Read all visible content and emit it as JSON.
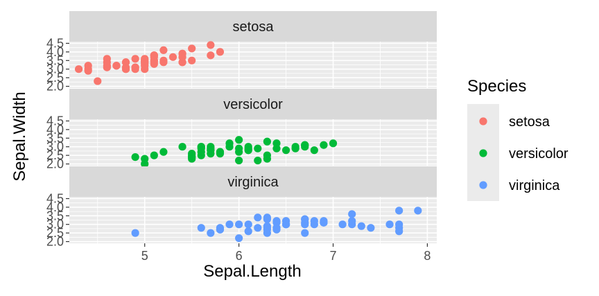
{
  "chart_data": {
    "type": "scatter",
    "xlabel": "Sepal.Length",
    "ylabel": "Sepal.Width",
    "xlim": [
      4.2,
      8.1
    ],
    "ylim": [
      1.9,
      4.6
    ],
    "x_ticks": [
      5,
      6,
      7,
      8
    ],
    "y_ticks": [
      2.0,
      2.5,
      3.0,
      3.5,
      4.0,
      4.5
    ],
    "grid": true,
    "legend": {
      "title": "Species",
      "position": "right"
    },
    "series": [
      {
        "name": "setosa",
        "color": "#F8766D",
        "points": [
          [
            5.1,
            3.5
          ],
          [
            4.9,
            3.0
          ],
          [
            4.7,
            3.2
          ],
          [
            4.6,
            3.1
          ],
          [
            5.0,
            3.6
          ],
          [
            5.4,
            3.9
          ],
          [
            4.6,
            3.4
          ],
          [
            5.0,
            3.4
          ],
          [
            4.4,
            2.9
          ],
          [
            4.9,
            3.1
          ],
          [
            5.4,
            3.7
          ],
          [
            4.8,
            3.4
          ],
          [
            4.8,
            3.0
          ],
          [
            4.3,
            3.0
          ],
          [
            5.8,
            4.0
          ],
          [
            5.7,
            4.4
          ],
          [
            5.4,
            3.9
          ],
          [
            5.1,
            3.5
          ],
          [
            5.7,
            3.8
          ],
          [
            5.1,
            3.8
          ],
          [
            5.4,
            3.4
          ],
          [
            5.1,
            3.7
          ],
          [
            4.6,
            3.6
          ],
          [
            5.1,
            3.3
          ],
          [
            4.8,
            3.4
          ],
          [
            5.0,
            3.0
          ],
          [
            5.0,
            3.4
          ],
          [
            5.2,
            3.5
          ],
          [
            5.2,
            3.4
          ],
          [
            4.7,
            3.2
          ],
          [
            4.8,
            3.1
          ],
          [
            5.4,
            3.4
          ],
          [
            5.2,
            4.1
          ],
          [
            5.5,
            4.2
          ],
          [
            4.9,
            3.1
          ],
          [
            5.0,
            3.2
          ],
          [
            5.5,
            3.5
          ],
          [
            4.9,
            3.6
          ],
          [
            4.4,
            3.0
          ],
          [
            5.1,
            3.4
          ],
          [
            5.0,
            3.5
          ],
          [
            4.5,
            2.3
          ],
          [
            4.4,
            3.2
          ],
          [
            5.0,
            3.5
          ],
          [
            5.1,
            3.8
          ],
          [
            4.8,
            3.0
          ],
          [
            5.1,
            3.8
          ],
          [
            4.6,
            3.2
          ],
          [
            5.3,
            3.7
          ],
          [
            5.0,
            3.3
          ]
        ]
      },
      {
        "name": "versicolor",
        "color": "#00BA38",
        "points": [
          [
            7.0,
            3.2
          ],
          [
            6.4,
            3.2
          ],
          [
            6.9,
            3.1
          ],
          [
            5.5,
            2.3
          ],
          [
            6.5,
            2.8
          ],
          [
            5.7,
            2.8
          ],
          [
            6.3,
            3.3
          ],
          [
            4.9,
            2.4
          ],
          [
            6.6,
            2.9
          ],
          [
            5.2,
            2.7
          ],
          [
            5.0,
            2.0
          ],
          [
            5.9,
            3.0
          ],
          [
            6.0,
            2.2
          ],
          [
            6.1,
            2.9
          ],
          [
            5.6,
            2.9
          ],
          [
            6.7,
            3.1
          ],
          [
            5.6,
            3.0
          ],
          [
            5.8,
            2.7
          ],
          [
            6.2,
            2.2
          ],
          [
            5.6,
            2.5
          ],
          [
            5.9,
            3.2
          ],
          [
            6.1,
            2.8
          ],
          [
            6.3,
            2.5
          ],
          [
            6.1,
            2.8
          ],
          [
            6.4,
            2.9
          ],
          [
            6.6,
            3.0
          ],
          [
            6.8,
            2.8
          ],
          [
            6.7,
            3.0
          ],
          [
            6.0,
            2.9
          ],
          [
            5.7,
            2.6
          ],
          [
            5.5,
            2.4
          ],
          [
            5.5,
            2.4
          ],
          [
            5.8,
            2.7
          ],
          [
            6.0,
            2.7
          ],
          [
            5.4,
            3.0
          ],
          [
            6.0,
            3.4
          ],
          [
            6.7,
            3.1
          ],
          [
            6.3,
            2.3
          ],
          [
            5.6,
            3.0
          ],
          [
            5.5,
            2.5
          ],
          [
            5.5,
            2.6
          ],
          [
            6.1,
            3.0
          ],
          [
            5.8,
            2.6
          ],
          [
            5.0,
            2.3
          ],
          [
            5.6,
            2.7
          ],
          [
            5.7,
            3.0
          ],
          [
            5.7,
            2.9
          ],
          [
            6.2,
            2.9
          ],
          [
            5.1,
            2.5
          ],
          [
            5.7,
            2.8
          ]
        ]
      },
      {
        "name": "virginica",
        "color": "#619CFF",
        "points": [
          [
            6.3,
            3.3
          ],
          [
            5.8,
            2.7
          ],
          [
            7.1,
            3.0
          ],
          [
            6.3,
            2.9
          ],
          [
            6.5,
            3.0
          ],
          [
            7.6,
            3.0
          ],
          [
            4.9,
            2.5
          ],
          [
            7.3,
            2.9
          ],
          [
            6.7,
            2.5
          ],
          [
            7.2,
            3.6
          ],
          [
            6.5,
            3.2
          ],
          [
            6.4,
            2.7
          ],
          [
            6.8,
            3.0
          ],
          [
            5.7,
            2.5
          ],
          [
            5.8,
            2.8
          ],
          [
            6.4,
            3.2
          ],
          [
            6.5,
            3.0
          ],
          [
            7.7,
            3.8
          ],
          [
            7.7,
            2.6
          ],
          [
            6.0,
            2.2
          ],
          [
            6.9,
            3.2
          ],
          [
            5.6,
            2.8
          ],
          [
            7.7,
            2.8
          ],
          [
            6.3,
            2.7
          ],
          [
            6.7,
            3.3
          ],
          [
            7.2,
            3.2
          ],
          [
            6.2,
            2.8
          ],
          [
            6.1,
            3.0
          ],
          [
            6.4,
            2.8
          ],
          [
            7.2,
            3.0
          ],
          [
            7.4,
            2.8
          ],
          [
            7.9,
            3.8
          ],
          [
            6.4,
            2.8
          ],
          [
            6.3,
            2.8
          ],
          [
            6.1,
            2.6
          ],
          [
            7.7,
            3.0
          ],
          [
            6.3,
            3.4
          ],
          [
            6.4,
            3.1
          ],
          [
            6.0,
            3.0
          ],
          [
            6.9,
            3.1
          ],
          [
            6.7,
            3.1
          ],
          [
            6.9,
            3.1
          ],
          [
            5.8,
            2.7
          ],
          [
            6.8,
            3.2
          ],
          [
            6.7,
            3.3
          ],
          [
            6.7,
            3.0
          ],
          [
            6.3,
            2.5
          ],
          [
            6.5,
            3.0
          ],
          [
            6.2,
            3.4
          ],
          [
            5.9,
            3.0
          ]
        ]
      }
    ]
  }
}
